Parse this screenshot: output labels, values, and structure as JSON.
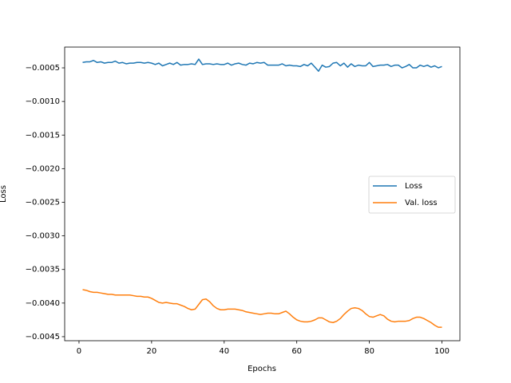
{
  "chart_data": {
    "type": "line",
    "xlabel": "Epochs",
    "ylabel": "Loss",
    "x": [
      1,
      2,
      3,
      4,
      5,
      6,
      7,
      8,
      9,
      10,
      11,
      12,
      13,
      14,
      15,
      16,
      17,
      18,
      19,
      20,
      21,
      22,
      23,
      24,
      25,
      26,
      27,
      28,
      29,
      30,
      31,
      32,
      33,
      34,
      35,
      36,
      37,
      38,
      39,
      40,
      41,
      42,
      43,
      44,
      45,
      46,
      47,
      48,
      49,
      50,
      51,
      52,
      53,
      54,
      55,
      56,
      57,
      58,
      59,
      60,
      61,
      62,
      63,
      64,
      65,
      66,
      67,
      68,
      69,
      70,
      71,
      72,
      73,
      74,
      75,
      76,
      77,
      78,
      79,
      80,
      81,
      82,
      83,
      84,
      85,
      86,
      87,
      88,
      89,
      90,
      91,
      92,
      93,
      94,
      95,
      96,
      97,
      98,
      99,
      100
    ],
    "series": [
      {
        "name": "Loss",
        "color": "#1f77b4",
        "values": [
          -0.00042,
          -0.00041,
          -0.00041,
          -0.00039,
          -0.00042,
          -0.00041,
          -0.00043,
          -0.00042,
          -0.00042,
          -0.0004,
          -0.00043,
          -0.00042,
          -0.00044,
          -0.00043,
          -0.00043,
          -0.00042,
          -0.00042,
          -0.00043,
          -0.00042,
          -0.00043,
          -0.00045,
          -0.00043,
          -0.00047,
          -0.00045,
          -0.00043,
          -0.00045,
          -0.00042,
          -0.00046,
          -0.00045,
          -0.00045,
          -0.00044,
          -0.00045,
          -0.00037,
          -0.00045,
          -0.00044,
          -0.00044,
          -0.00045,
          -0.00044,
          -0.00045,
          -0.00045,
          -0.00043,
          -0.00046,
          -0.00044,
          -0.00043,
          -0.00045,
          -0.00046,
          -0.00043,
          -0.00044,
          -0.00042,
          -0.00043,
          -0.00042,
          -0.00046,
          -0.00046,
          -0.00046,
          -0.00046,
          -0.00044,
          -0.00047,
          -0.00046,
          -0.00047,
          -0.00047,
          -0.00048,
          -0.00045,
          -0.00047,
          -0.00043,
          -0.00049,
          -0.00055,
          -0.00046,
          -0.00049,
          -0.00048,
          -0.00043,
          -0.00042,
          -0.00047,
          -0.00043,
          -0.00049,
          -0.00044,
          -0.00048,
          -0.00046,
          -0.00047,
          -0.00047,
          -0.00042,
          -0.00048,
          -0.00047,
          -0.00046,
          -0.00046,
          -0.00045,
          -0.00048,
          -0.00046,
          -0.00046,
          -0.0005,
          -0.00048,
          -0.00045,
          -0.0005,
          -0.0005,
          -0.00046,
          -0.00048,
          -0.00046,
          -0.00049,
          -0.00047,
          -0.0005,
          -0.00048
        ]
      },
      {
        "name": "Val. loss",
        "color": "#ff7f0e",
        "values": [
          -0.0038,
          -0.00381,
          -0.00383,
          -0.00384,
          -0.00384,
          -0.00385,
          -0.00386,
          -0.00387,
          -0.00387,
          -0.00388,
          -0.00388,
          -0.00388,
          -0.00388,
          -0.00388,
          -0.00389,
          -0.0039,
          -0.0039,
          -0.00391,
          -0.00391,
          -0.00393,
          -0.00396,
          -0.00399,
          -0.004,
          -0.00399,
          -0.004,
          -0.00401,
          -0.00401,
          -0.00403,
          -0.00405,
          -0.00408,
          -0.0041,
          -0.00409,
          -0.00402,
          -0.00395,
          -0.00394,
          -0.00398,
          -0.00404,
          -0.00408,
          -0.0041,
          -0.0041,
          -0.00409,
          -0.00409,
          -0.00409,
          -0.0041,
          -0.00411,
          -0.00413,
          -0.00414,
          -0.00415,
          -0.00416,
          -0.00417,
          -0.00416,
          -0.00415,
          -0.00415,
          -0.00416,
          -0.00416,
          -0.00414,
          -0.00412,
          -0.00416,
          -0.00421,
          -0.00425,
          -0.00427,
          -0.00428,
          -0.00428,
          -0.00427,
          -0.00425,
          -0.00422,
          -0.00422,
          -0.00425,
          -0.00428,
          -0.00429,
          -0.00427,
          -0.00423,
          -0.00417,
          -0.00412,
          -0.00408,
          -0.00407,
          -0.00408,
          -0.00411,
          -0.00416,
          -0.0042,
          -0.00421,
          -0.00419,
          -0.00417,
          -0.00419,
          -0.00424,
          -0.00427,
          -0.00428,
          -0.00427,
          -0.00427,
          -0.00427,
          -0.00426,
          -0.00423,
          -0.00421,
          -0.00421,
          -0.00423,
          -0.00426,
          -0.00429,
          -0.00433,
          -0.00436,
          -0.00436
        ]
      }
    ],
    "xlim": [
      -3.95,
      104.95
    ],
    "xticks": [
      0,
      20,
      40,
      60,
      80,
      100
    ],
    "ylim": [
      -0.00456,
      -0.000191
    ],
    "yticks": [
      {
        "value": -0.0005,
        "label": "−0.0005"
      },
      {
        "value": -0.001,
        "label": "−0.0010"
      },
      {
        "value": -0.0015,
        "label": "−0.0015"
      },
      {
        "value": -0.002,
        "label": "−0.0020"
      },
      {
        "value": -0.0025,
        "label": "−0.0025"
      },
      {
        "value": -0.003,
        "label": "−0.0030"
      },
      {
        "value": -0.0035,
        "label": "−0.0035"
      },
      {
        "value": -0.004,
        "label": "−0.0040"
      },
      {
        "value": -0.0045,
        "label": "−0.0045"
      }
    ],
    "legend": "center right",
    "grid": false
  }
}
